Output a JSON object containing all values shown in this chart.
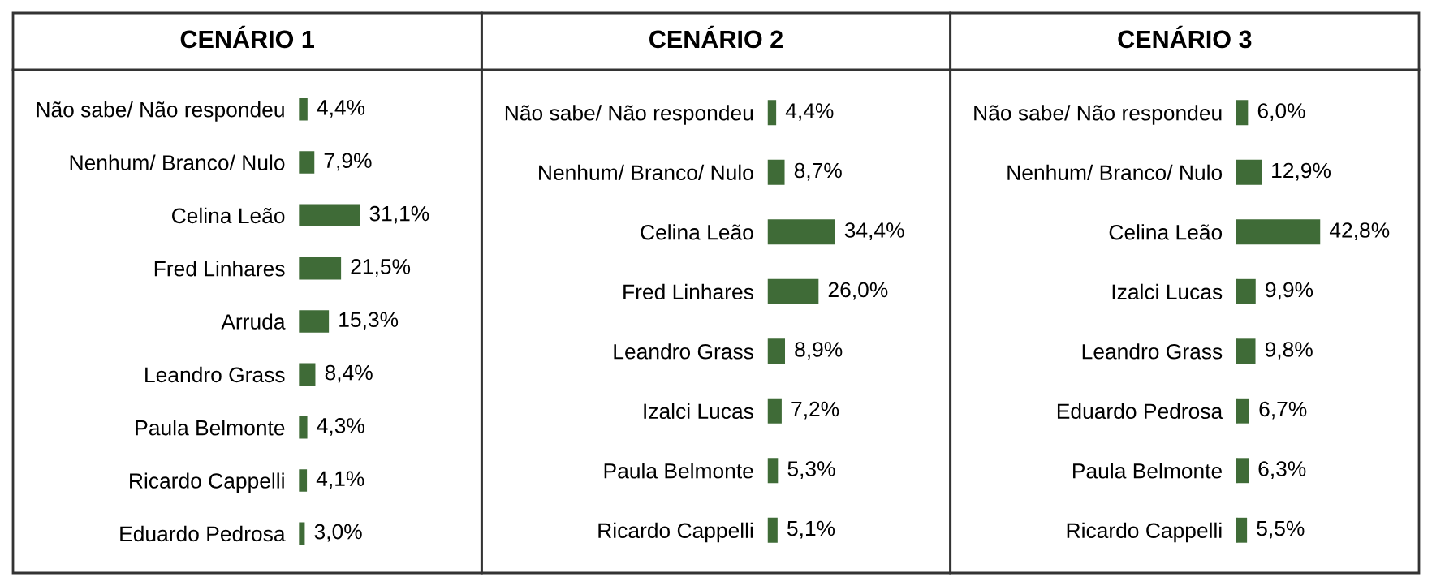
{
  "chart_data": [
    {
      "type": "bar",
      "orientation": "horizontal",
      "title": "CENÁRIO 1",
      "categories": [
        "Não sabe/ Não respondeu",
        "Nenhum/ Branco/ Nulo",
        "Celina Leão",
        "Fred Linhares",
        "Arruda",
        "Leandro Grass",
        "Paula Belmonte",
        "Ricardo Cappelli",
        "Eduardo Pedrosa"
      ],
      "values": [
        4.4,
        7.9,
        31.1,
        21.5,
        15.3,
        8.4,
        4.3,
        4.1,
        3.0
      ],
      "value_labels": [
        "4,4%",
        "7,9%",
        "31,1%",
        "21,5%",
        "15,3%",
        "8,4%",
        "4,3%",
        "4,1%",
        "3,0%"
      ],
      "color": "#3f6b37",
      "tick_labels": "y",
      "grid": false
    },
    {
      "type": "bar",
      "orientation": "horizontal",
      "title": "CENÁRIO 2",
      "categories": [
        "Não sabe/ Não respondeu",
        "Nenhum/ Branco/ Nulo",
        "Celina Leão",
        "Fred Linhares",
        "Leandro Grass",
        "Izalci Lucas",
        "Paula Belmonte",
        "Ricardo Cappelli"
      ],
      "values": [
        4.4,
        8.7,
        34.4,
        26.0,
        8.9,
        7.2,
        5.3,
        5.1
      ],
      "value_labels": [
        "4,4%",
        "8,7%",
        "34,4%",
        "26,0%",
        "8,9%",
        "7,2%",
        "5,3%",
        "5,1%"
      ],
      "color": "#3f6b37",
      "tick_labels": "y",
      "grid": false
    },
    {
      "type": "bar",
      "orientation": "horizontal",
      "title": "CENÁRIO 3",
      "categories": [
        "Não sabe/ Não respondeu",
        "Nenhum/ Branco/ Nulo",
        "Celina Leão",
        "Izalci Lucas",
        "Leandro Grass",
        "Eduardo Pedrosa",
        "Paula Belmonte",
        "Ricardo Cappelli"
      ],
      "values": [
        6.0,
        12.9,
        42.8,
        9.9,
        9.8,
        6.7,
        6.3,
        5.5
      ],
      "value_labels": [
        "6,0%",
        "12,9%",
        "42,8%",
        "9,9%",
        "9,8%",
        "6,7%",
        "6,3%",
        "5,5%"
      ],
      "color": "#3f6b37",
      "tick_labels": "y",
      "grid": false
    }
  ]
}
